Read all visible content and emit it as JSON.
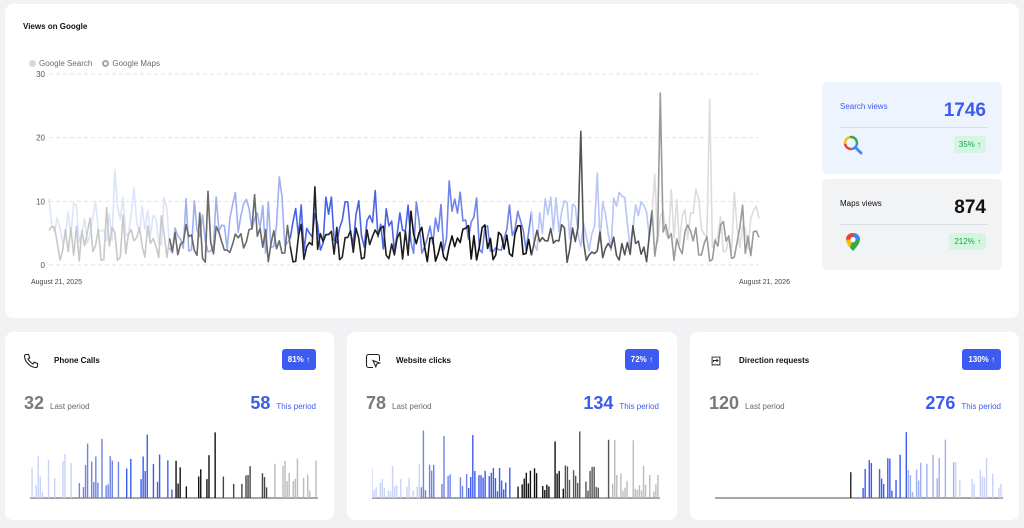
{
  "main": {
    "title": "Views on Google",
    "legend": [
      {
        "label": "Google Search",
        "color": "#d9d9d9"
      },
      {
        "label": "Google Maps",
        "color": "#a6a6a6"
      }
    ],
    "search": {
      "label": "Search views",
      "value": "1746",
      "change": "35% ↑",
      "value_color": "#3d5bf0"
    },
    "maps": {
      "label": "Maps views",
      "value": "874",
      "change": "212% ↑",
      "value_color": "#111111"
    }
  },
  "chart_data": {
    "type": "line",
    "title": "Views on Google",
    "x_start": "August 21, 2025",
    "x_end": "August 21, 2026",
    "xlabels": [
      "August 21, 2025",
      "August 21, 2026"
    ],
    "ylim": [
      0,
      30
    ],
    "yticks": [
      0,
      10,
      20,
      30
    ],
    "grid": true,
    "legend": "top-left",
    "series": [
      {
        "name": "Google Search",
        "color_segments": [
          "#dce4fb",
          "#9fb0ef",
          "#4a63e6",
          "#6f83e8",
          "#b8c5f5",
          "#dcdcdc"
        ],
        "peaks": [
          {
            "x": 0.93,
            "y": 26
          }
        ]
      },
      {
        "name": "Google Maps",
        "color_segments": [
          "#c8c8c8",
          "#6a6a6a",
          "#222222",
          "#111111",
          "#555555",
          "#9a9a9a"
        ],
        "peaks": [
          {
            "x": 0.86,
            "y": 27
          },
          {
            "x": 0.75,
            "y": 21
          }
        ]
      }
    ]
  },
  "cards": [
    {
      "icon": "phone-icon",
      "title": "Phone Calls",
      "badge": "81% ↑",
      "last_value": "32",
      "last_label": "Last period",
      "this_value": "58",
      "this_label": "This period"
    },
    {
      "icon": "website-icon",
      "title": "Website clicks",
      "badge": "72% ↑",
      "last_value": "78",
      "last_label": "Last period",
      "this_value": "134",
      "this_label": "This period"
    },
    {
      "icon": "direction-icon",
      "title": "Direction requests",
      "badge": "130% ↑",
      "last_value": "120",
      "last_label": "Last period",
      "this_value": "276",
      "this_label": "This period"
    }
  ]
}
